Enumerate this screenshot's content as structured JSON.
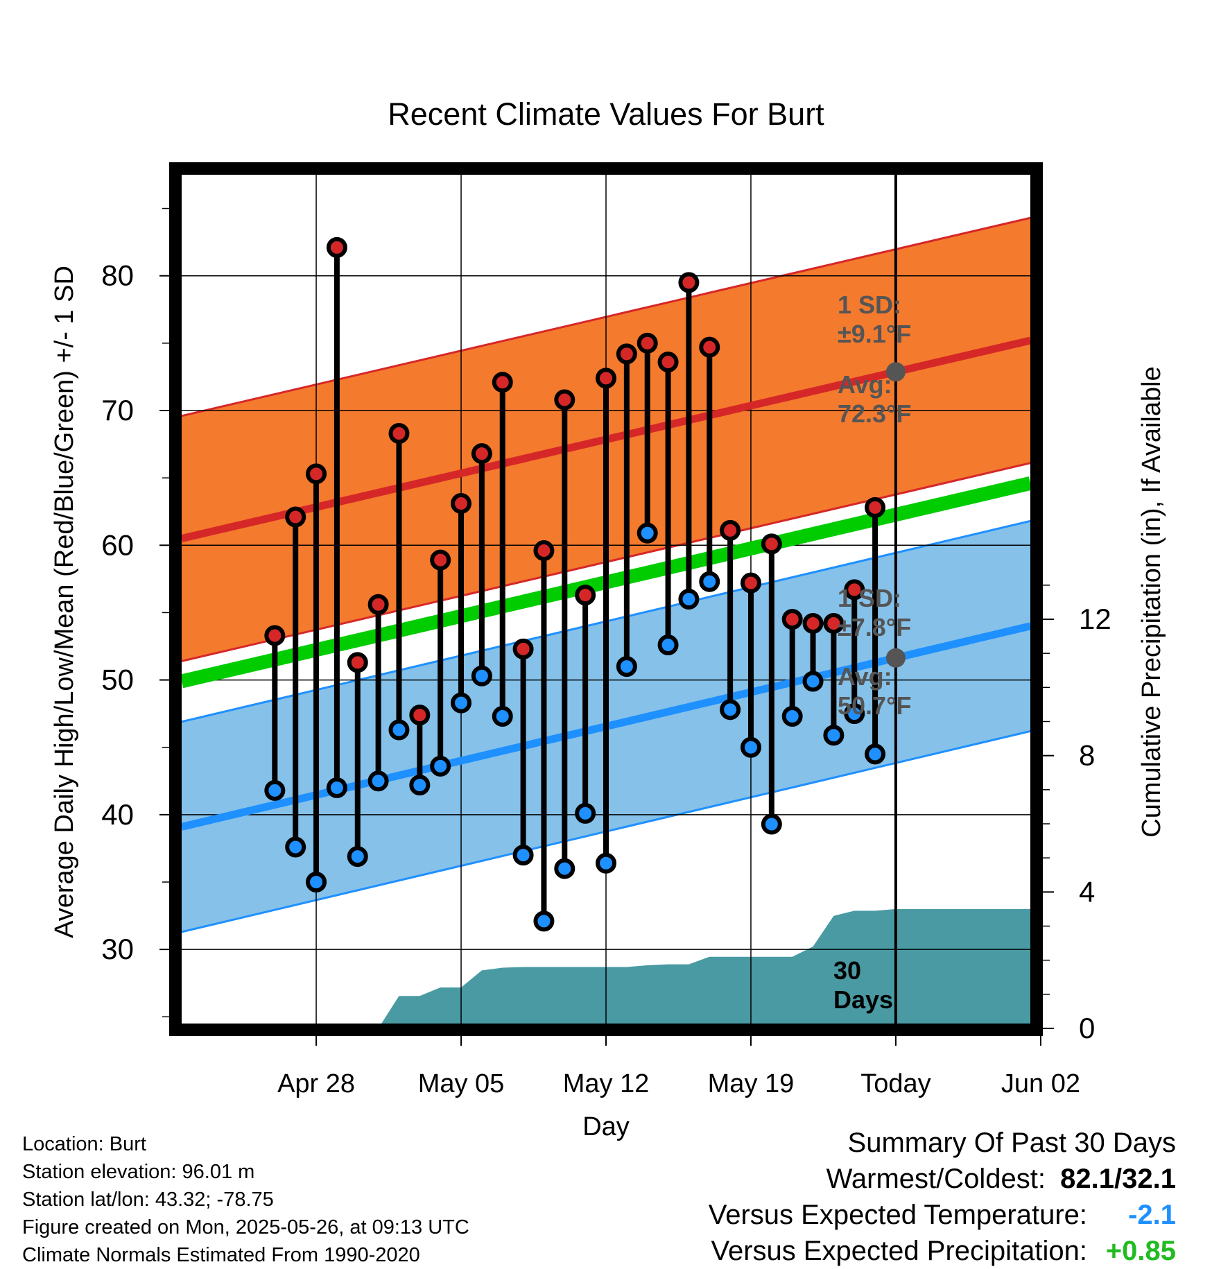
{
  "chart_data": {
    "type": "line",
    "title": "Recent Climate Values For Burt",
    "xlabel": "Day",
    "ylabel_left": "Average Daily High/Low/Mean (Red/Blue/Green) +/- 1 SD",
    "ylabel_right": "Cumulative Precipitation (in), If Available",
    "x_ticks": [
      "Apr 28",
      "May 05",
      "May 12",
      "May 19",
      "Today",
      "Jun 02"
    ],
    "x_range_days": [
      -34.5,
      6.5
    ],
    "x_tick_days": [
      -28,
      -21,
      -14,
      -7,
      0,
      7
    ],
    "ylim_left": [
      24.5,
      87.5
    ],
    "y_ticks_left": [
      30,
      40,
      50,
      60,
      70,
      80
    ],
    "ylim_right": [
      0,
      12
    ],
    "y_ticks_right": [
      0,
      4,
      8,
      12
    ],
    "daily_high": [
      53.3,
      62.1,
      65.3,
      82.1,
      51.3,
      55.6,
      68.3,
      47.4,
      58.9,
      63.1,
      66.8,
      72.1,
      52.3,
      59.6,
      70.8,
      56.3,
      72.4,
      74.2,
      75.0,
      73.6,
      79.5,
      74.7,
      61.1,
      57.2,
      60.1,
      54.5,
      54.2,
      54.2,
      56.7,
      62.8
    ],
    "daily_low": [
      41.8,
      37.6,
      35.0,
      42.0,
      36.9,
      42.5,
      46.3,
      42.2,
      43.6,
      48.3,
      50.3,
      47.3,
      37.0,
      32.1,
      36.0,
      40.1,
      36.4,
      51.0,
      60.9,
      52.6,
      56.0,
      57.3,
      47.8,
      45.0,
      39.3,
      47.3,
      49.9,
      45.9,
      47.5,
      44.5
    ],
    "normal_high_start_end": [
      60.5,
      75.2
    ],
    "high_sd": 9.1,
    "normal_low_start_end": [
      39.1,
      54.0
    ],
    "low_sd": 7.8,
    "normal_mean_start_end": [
      49.9,
      64.6
    ],
    "cumulative_precip": [
      0,
      0,
      0,
      0,
      0,
      0.95,
      0.95,
      1.2,
      1.2,
      1.7,
      1.78,
      1.8,
      1.8,
      1.8,
      1.8,
      1.8,
      1.8,
      1.85,
      1.88,
      1.88,
      2.1,
      2.1,
      2.1,
      2.1,
      2.1,
      2.4,
      3.3,
      3.45,
      3.45,
      3.5,
      3.5
    ],
    "annotations": {
      "high_sd": [
        "1 SD:",
        "±9.1°F"
      ],
      "high_avg": [
        "Avg:",
        "72.3°F"
      ],
      "low_sd": [
        "1 SD:",
        "±7.8°F"
      ],
      "low_avg": [
        "Avg:",
        "50.7°F"
      ],
      "window": [
        "30",
        "Days"
      ]
    },
    "colors": {
      "high_band": "#f47a2e",
      "high_line": "#d62728",
      "low_band": "#85c1e9",
      "low_line": "#1e90ff",
      "mean_line": "#00cc00",
      "precip": "#4a9aa3",
      "high_dot": "#d62728",
      "low_dot": "#1e90ff"
    }
  },
  "info": {
    "location": "Location: Burt",
    "elevation": "Station elevation: 96.01 m",
    "latlon": "Station lat/lon: 43.32; -78.75",
    "created": "Figure created on Mon, 2025-05-26, at 09:13 UTC",
    "normals": "Climate Normals Estimated From 1990-2020"
  },
  "summary": {
    "heading": "Summary Of Past 30 Days",
    "warm_label": "Warmest/Coldest:",
    "warm_value": "82.1/32.1",
    "temp_label": "Versus Expected Temperature:",
    "temp_value": "-2.1",
    "temp_color": "#1e90ff",
    "precip_label": "Versus Expected Precipitation:",
    "precip_value": "+0.85",
    "precip_color": "#22bb22"
  }
}
